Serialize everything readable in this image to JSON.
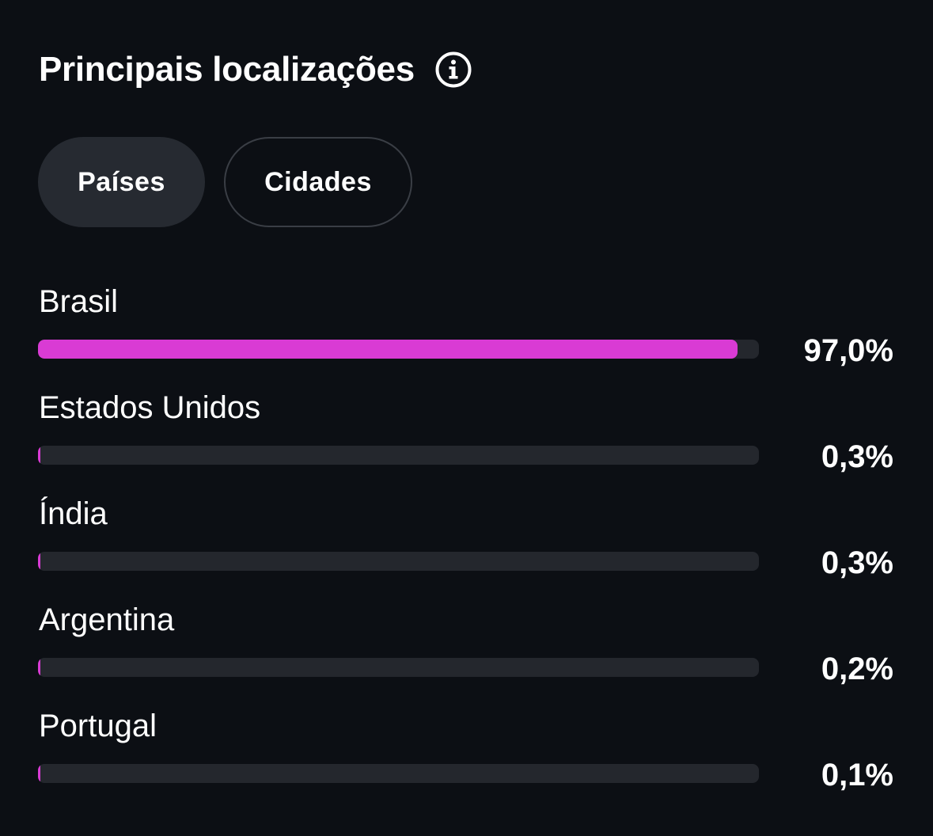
{
  "header": {
    "title": "Principais localizações",
    "info_icon": "info-icon"
  },
  "tabs": [
    {
      "label": "Países",
      "active": true
    },
    {
      "label": "Cidades",
      "active": false
    }
  ],
  "colors": {
    "background": "#0c0f14",
    "bar_fill": "#d93bd4",
    "bar_track": "#24272d",
    "tab_active_bg": "#262a31"
  },
  "locations": [
    {
      "name": "Brasil",
      "value_label": "97,0%",
      "percent": 97.0
    },
    {
      "name": "Estados Unidos",
      "value_label": "0,3%",
      "percent": 0.3
    },
    {
      "name": "Índia",
      "value_label": "0,3%",
      "percent": 0.3
    },
    {
      "name": "Argentina",
      "value_label": "0,2%",
      "percent": 0.2
    },
    {
      "name": "Portugal",
      "value_label": "0,1%",
      "percent": 0.1
    }
  ]
}
